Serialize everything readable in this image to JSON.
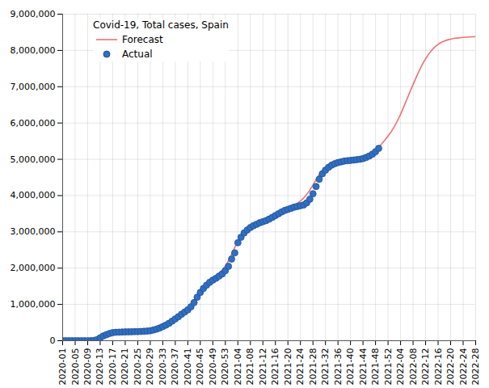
{
  "chart_data": {
    "type": "line",
    "title": "Covid-19, Total cases, Spain",
    "categories": [
      "2020-01",
      null,
      null,
      null,
      "2020-05",
      null,
      null,
      null,
      "2020-09",
      null,
      null,
      null,
      "2020-13",
      null,
      null,
      null,
      "2020-17",
      null,
      null,
      null,
      "2020-21",
      null,
      null,
      null,
      "2020-25",
      null,
      null,
      null,
      "2020-29",
      null,
      null,
      null,
      "2020-33",
      null,
      null,
      null,
      "2020-37",
      null,
      null,
      null,
      "2020-41",
      null,
      null,
      null,
      "2020-45",
      null,
      null,
      null,
      "2020-49",
      null,
      null,
      null,
      "2020-53",
      null,
      null,
      null,
      "2021-04",
      null,
      null,
      null,
      "2021-08",
      null,
      null,
      null,
      "2021-12",
      null,
      null,
      null,
      "2021-16",
      null,
      null,
      null,
      "2021-20",
      null,
      null,
      null,
      "2021-24",
      null,
      null,
      null,
      "2021-28",
      null,
      null,
      null,
      "2021-32",
      null,
      null,
      null,
      "2021-36",
      null,
      null,
      null,
      "2021-40",
      null,
      null,
      null,
      "2021-44",
      null,
      null,
      null,
      "2021-48",
      null,
      null,
      null,
      "2021-52",
      null,
      null,
      null,
      "2022-04",
      null,
      null,
      null,
      "2022-08",
      null,
      null,
      null,
      "2022-12",
      null,
      null,
      null,
      "2022-16",
      null,
      null,
      null,
      "2022-20",
      null,
      null,
      null,
      "2022-24",
      null,
      null,
      null,
      "2022-28"
    ],
    "series": [
      {
        "name": "Forecast",
        "type": "line",
        "color": "#f07070",
        "line_style": "solid",
        "values": [
          0,
          0,
          0,
          0,
          0,
          0,
          0,
          0,
          0,
          0,
          0,
          0,
          40000,
          80000,
          115000,
          145000,
          170000,
          190000,
          205000,
          215000,
          225000,
          232000,
          238000,
          243000,
          248000,
          253000,
          260000,
          270000,
          285000,
          305000,
          330000,
          365000,
          405000,
          455000,
          510000,
          570000,
          635000,
          700000,
          770000,
          840000,
          910000,
          985000,
          1070000,
          1160000,
          1260000,
          1370000,
          1480000,
          1580000,
          1680000,
          1770000,
          1860000,
          1950000,
          2060000,
          2200000,
          2380000,
          2570000,
          2740000,
          2880000,
          2990000,
          3070000,
          3140000,
          3200000,
          3250000,
          3300000,
          3340000,
          3380000,
          3420000,
          3460000,
          3500000,
          3540000,
          3580000,
          3620000,
          3660000,
          3700000,
          3740000,
          3790000,
          3850000,
          3930000,
          4030000,
          4150000,
          4290000,
          4440000,
          4580000,
          4700000,
          4790000,
          4850000,
          4890000,
          4910000,
          4920000,
          4930000,
          4940000,
          4950000,
          4960000,
          4970000,
          4990000,
          5010000,
          5040000,
          5080000,
          5130000,
          5190000,
          5260000,
          5340000,
          5430000,
          5530000,
          5640000,
          5760000,
          5900000,
          6060000,
          6240000,
          6440000,
          6650000,
          6860000,
          7060000,
          7260000,
          7450000,
          7620000,
          7770000,
          7900000,
          8010000,
          8100000,
          8170000,
          8220000,
          8260000,
          8290000,
          8310000,
          8330000,
          8340000,
          8350000,
          8360000,
          8365000,
          8370000,
          8375000,
          8380000
        ]
      },
      {
        "name": "Actual",
        "type": "scatter",
        "color": "#2f6fc4",
        "marker": "circle",
        "values": [
          0,
          0,
          0,
          0,
          0,
          0,
          0,
          0,
          100,
          600,
          7800,
          28600,
          80000,
          131000,
          166000,
          198000,
          223000,
          232000,
          236000,
          240000,
          243000,
          245000,
          247000,
          249000,
          251000,
          255000,
          259000,
          265000,
          275000,
          295000,
          320000,
          350000,
          390000,
          430000,
          480000,
          540000,
          600000,
          660000,
          730000,
          790000,
          850000,
          935000,
          1050000,
          1200000,
          1330000,
          1440000,
          1530000,
          1610000,
          1670000,
          1720000,
          1780000,
          1840000,
          1930000,
          2050000,
          2250000,
          2420000,
          2700000,
          2850000,
          2970000,
          3050000,
          3120000,
          3170000,
          3210000,
          3250000,
          3280000,
          3310000,
          3350000,
          3400000,
          3450000,
          3500000,
          3550000,
          3590000,
          3620000,
          3650000,
          3680000,
          3700000,
          3720000,
          3740000,
          3800000,
          3900000,
          4050000,
          4250000,
          4450000,
          4600000,
          4700000,
          4780000,
          4840000,
          4880000,
          4910000,
          4930000,
          4950000,
          4960000,
          4970000,
          4980000,
          4990000,
          5000000,
          5020000,
          5050000,
          5090000,
          5140000,
          5210000,
          5300000,
          null,
          null,
          null,
          null,
          null,
          null,
          null,
          null,
          null,
          null,
          null,
          null,
          null,
          null,
          null,
          null,
          null,
          null,
          null,
          null,
          null,
          null,
          null,
          null,
          null,
          null,
          null,
          null,
          null,
          null,
          null
        ]
      }
    ],
    "ylim": [
      0,
      9000000
    ],
    "yticks": [
      0,
      {
        "value": 1000000,
        "label": "1,000,000"
      },
      {
        "value": 2000000,
        "label": "2,000,000"
      },
      {
        "value": 3000000,
        "label": "3,000,000"
      },
      {
        "value": 4000000,
        "label": "4,000,000"
      },
      {
        "value": 5000000,
        "label": "5,000,000"
      },
      {
        "value": 6000000,
        "label": "6,000,000"
      },
      {
        "value": 7000000,
        "label": "7,000,000"
      },
      {
        "value": 8000000,
        "label": "8,000,000"
      },
      {
        "value": 9000000,
        "label": "9,000,000"
      }
    ],
    "grid": true,
    "legend": "upper left"
  }
}
